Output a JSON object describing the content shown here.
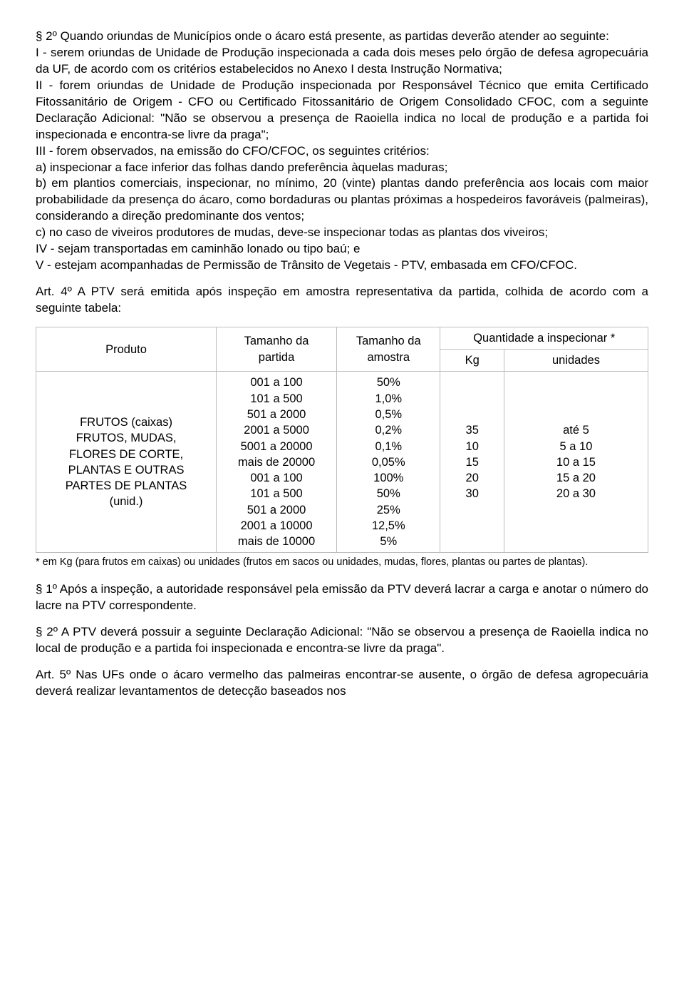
{
  "para2": "§ 2º Quando oriundas de Municípios onde o ácaro está presente, as partidas deverão atender ao seguinte:\nI - serem oriundas de Unidade de Produção inspecionada a cada dois meses pelo órgão de defesa agropecuária da UF, de acordo com os critérios estabelecidos no Anexo I desta Instrução Normativa;\nII - forem oriundas de Unidade de Produção inspecionada por Responsável Técnico que emita Certificado Fitossanitário de Origem - CFO ou Certificado Fitossanitário de Origem Consolidado CFOC, com a seguinte Declaração Adicional: \"Não se observou a presença de Raoiella indica no local de produção e a partida foi inspecionada e encontra-se livre da praga\";\nIII - forem observados, na emissão do CFO/CFOC, os seguintes critérios:\na) inspecionar a face inferior das folhas dando preferência àquelas maduras;\nb) em plantios comerciais, inspecionar, no mínimo, 20 (vinte) plantas dando preferência aos locais com maior probabilidade da presença do ácaro, como bordaduras ou plantas próximas a hospedeiros favoráveis (palmeiras), considerando a direção predominante dos ventos;\nc) no caso de viveiros produtores de mudas, deve-se inspecionar todas as plantas dos viveiros;\nIV - sejam transportadas em caminhão lonado ou tipo baú; e\nV - estejam acompanhadas de Permissão de Trânsito de Vegetais - PTV, embasada em CFO/CFOC.",
  "art4": "Art. 4º A PTV será emitida após inspeção em amostra representativa da partida, colhida de acordo com a seguinte tabela:",
  "table": {
    "h_prod": "Produto",
    "h_tam_part": "Tamanho da\npartida",
    "h_tam_am": "Tamanho da\namostra",
    "h_quant": "Quantidade a inspecionar *",
    "h_kg": "Kg",
    "h_unid": "unidades",
    "prod": "FRUTOS (caixas)\nFRUTOS, MUDAS,\nFLORES DE CORTE,\nPLANTAS E OUTRAS\nPARTES DE PLANTAS\n(unid.)",
    "partida": "001 a 100\n101 a 500\n501 a 2000\n2001 a 5000\n5001 a 20000\nmais de 20000\n001 a 100\n101 a 500\n501 a 2000\n2001 a 10000\nmais de 10000",
    "amostra": "50%\n1,0%\n0,5%\n0,2%\n0,1%\n0,05%\n100%\n50%\n25%\n12,5%\n5%",
    "kg": "35\n10\n15\n20\n30",
    "unid": "até 5\n5 a 10\n10 a 15\n15 a 20\n20 a 30"
  },
  "footnote": "* em Kg (para frutos em caixas) ou unidades (frutos em sacos ou unidades, mudas, flores, plantas ou partes de plantas).",
  "p1_after": "§ 1º Após a inspeção, a autoridade responsável pela emissão da PTV deverá lacrar a carga e anotar o número do lacre na PTV correspondente.",
  "p2_after": "§ 2º A PTV deverá possuir a seguinte Declaração Adicional: \"Não se observou a presença de Raoiella indica no local de produção e a partida foi inspecionada e encontra-se livre da praga\".",
  "art5": "Art. 5º Nas UFs onde o ácaro vermelho das palmeiras encontrar-se ausente, o órgão de defesa agropecuária deverá realizar levantamentos de detecção baseados nos"
}
